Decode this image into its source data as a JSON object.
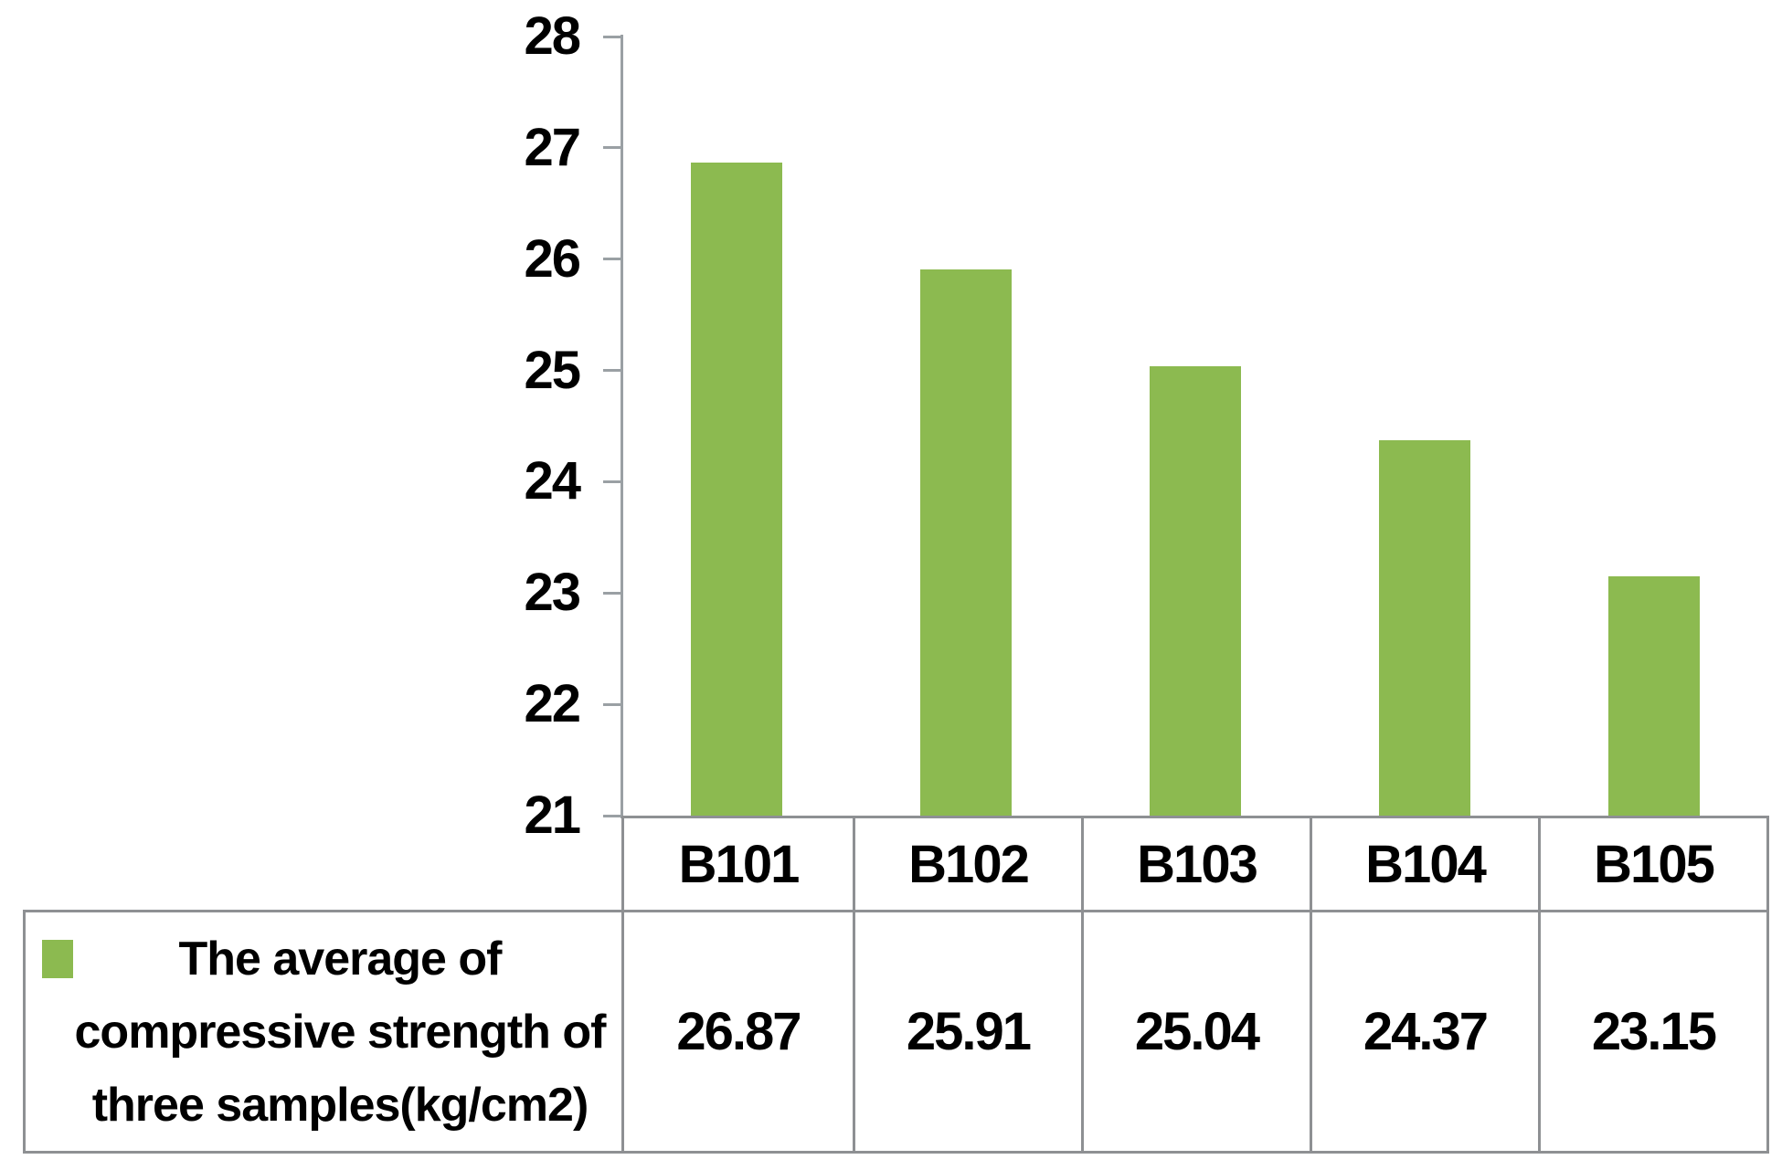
{
  "chart_data": {
    "type": "bar",
    "categories": [
      "B101",
      "B102",
      "B103",
      "B104",
      "B105"
    ],
    "values": [
      26.87,
      25.91,
      25.04,
      24.37,
      23.15
    ],
    "value_labels": [
      "26.87",
      "25.91",
      "25.04",
      "24.37",
      "23.15"
    ],
    "series": [
      {
        "name": "The average of compressive strength of three samples(kg/cm2)",
        "values": [
          26.87,
          25.91,
          25.04,
          24.37,
          23.15
        ]
      }
    ],
    "legend_lines": [
      "The average of",
      "compressive strength of",
      "three samples(kg/cm2)"
    ],
    "title": "",
    "xlabel": "",
    "ylabel": "",
    "ylim": [
      21,
      28
    ],
    "yticks": [
      28,
      27,
      26,
      25,
      24,
      23,
      22,
      21
    ],
    "grid": false,
    "legend_position": "bottom-left-cell",
    "colors": {
      "bar": "#8cba50",
      "axis": "#9aa0a4",
      "border": "#8e9093",
      "text": "#000000",
      "background": "#ffffff"
    }
  }
}
